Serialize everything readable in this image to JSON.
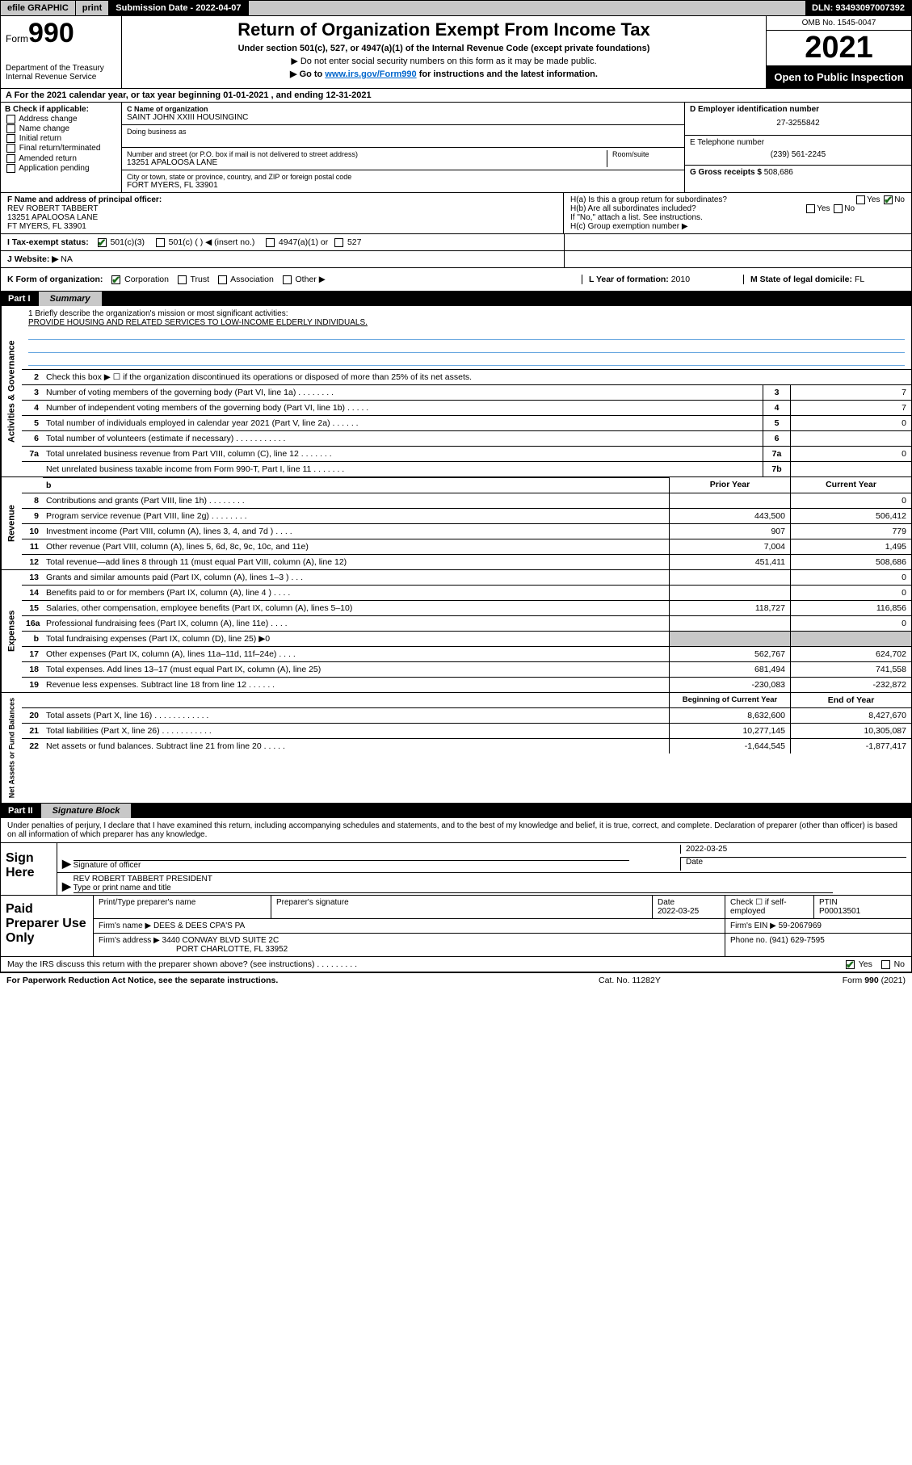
{
  "topbar": {
    "efile": "efile GRAPHIC",
    "print": "print",
    "subdate_label": "Submission Date - 2022-04-07",
    "dln": "DLN: 93493097007392"
  },
  "header": {
    "form_prefix": "Form",
    "form_num": "990",
    "dept": "Department of the Treasury",
    "irs": "Internal Revenue Service",
    "title": "Return of Organization Exempt From Income Tax",
    "sub": "Under section 501(c), 527, or 4947(a)(1) of the Internal Revenue Code (except private foundations)",
    "note1": "▶ Do not enter social security numbers on this form as it may be made public.",
    "note2_pre": "▶ Go to ",
    "note2_link": "www.irs.gov/Form990",
    "note2_post": " for instructions and the latest information.",
    "omb": "OMB No. 1545-0047",
    "year": "2021",
    "open": "Open to Public Inspection"
  },
  "row_a": "A For the 2021 calendar year, or tax year beginning 01-01-2021   , and ending 12-31-2021",
  "sec_b": {
    "label": "B Check if applicable:",
    "items": [
      "Address change",
      "Name change",
      "Initial return",
      "Final return/terminated",
      "Amended return",
      "Application pending"
    ]
  },
  "sec_c": {
    "name_label": "C Name of organization",
    "name": "SAINT JOHN XXIII HOUSINGINC",
    "dba_label": "Doing business as",
    "addr_label": "Number and street (or P.O. box if mail is not delivered to street address)",
    "room_label": "Room/suite",
    "addr": "13251 APALOOSA LANE",
    "city_label": "City or town, state or province, country, and ZIP or foreign postal code",
    "city": "FORT MYERS, FL  33901"
  },
  "sec_d": {
    "ein_label": "D Employer identification number",
    "ein": "27-3255842",
    "tel_label": "E Telephone number",
    "tel": "(239) 561-2245",
    "gross_label": "G Gross receipts $",
    "gross": "508,686"
  },
  "sec_f": {
    "label": "F  Name and address of principal officer:",
    "name": "REV ROBERT TABBERT",
    "addr1": "13251 APALOOSA LANE",
    "addr2": "FT MYERS, FL  33901"
  },
  "sec_h": {
    "ha": "H(a)  Is this a group return for subordinates?",
    "hb": "H(b)  Are all subordinates included?",
    "hb_note": "If \"No,\" attach a list. See instructions.",
    "hc": "H(c)  Group exemption number ▶",
    "yes": "Yes",
    "no": "No"
  },
  "row_i": {
    "label": "I   Tax-exempt status:",
    "opts": [
      "501(c)(3)",
      "501(c) (   ) ◀ (insert no.)",
      "4947(a)(1) or",
      "527"
    ]
  },
  "row_j": {
    "label": "J   Website: ▶",
    "val": "NA"
  },
  "row_k": {
    "label": "K Form of organization:",
    "opts": [
      "Corporation",
      "Trust",
      "Association",
      "Other ▶"
    ],
    "year_label": "L Year of formation:",
    "year": "2010",
    "state_label": "M State of legal domicile:",
    "state": "FL"
  },
  "part1": {
    "num": "Part I",
    "title": "Summary"
  },
  "mission": {
    "q": "1  Briefly describe the organization's mission or most significant activities:",
    "txt": "PROVIDE HOUSING AND RELATED SERVICES TO LOW-INCOME ELDERLY INDIVIDUALS."
  },
  "gov_rows": [
    {
      "n": "2",
      "t": "Check this box ▶ ☐  if the organization discontinued its operations or disposed of more than 25% of its net assets."
    },
    {
      "n": "3",
      "t": "Number of voting members of the governing body (Part VI, line 1a)   .     .     .     .     .     .     .     .",
      "b": "3",
      "v": "7"
    },
    {
      "n": "4",
      "t": "Number of independent voting members of the governing body (Part VI, line 1b)   .     .     .     .     .",
      "b": "4",
      "v": "7"
    },
    {
      "n": "5",
      "t": "Total number of individuals employed in calendar year 2021 (Part V, line 2a)   .     .     .     .     .     .",
      "b": "5",
      "v": "0"
    },
    {
      "n": "6",
      "t": "Total number of volunteers (estimate if necessary)   .     .     .     .     .     .     .     .     .     .     .",
      "b": "6",
      "v": ""
    },
    {
      "n": "7a",
      "t": "Total unrelated business revenue from Part VIII, column (C), line 12   .     .     .     .     .     .     .",
      "b": "7a",
      "v": "0"
    },
    {
      "n": "",
      "t": "Net unrelated business taxable income from Form 990-T, Part I, line 11   .     .     .     .     .     .     .",
      "b": "7b",
      "v": ""
    }
  ],
  "pycol": "Prior Year",
  "cycol": "Current Year",
  "rev_rows": [
    {
      "n": "8",
      "t": "Contributions and grants (Part VIII, line 1h)    .     .     .     .     .     .     .     .",
      "py": "",
      "cy": "0"
    },
    {
      "n": "9",
      "t": "Program service revenue (Part VIII, line 2g)   .     .     .     .     .     .     .     .",
      "py": "443,500",
      "cy": "506,412"
    },
    {
      "n": "10",
      "t": "Investment income (Part VIII, column (A), lines 3, 4, and 7d )   .     .     .     .",
      "py": "907",
      "cy": "779"
    },
    {
      "n": "11",
      "t": "Other revenue (Part VIII, column (A), lines 5, 6d, 8c, 9c, 10c, and 11e)",
      "py": "7,004",
      "cy": "1,495"
    },
    {
      "n": "12",
      "t": "Total revenue—add lines 8 through 11 (must equal Part VIII, column (A), line 12)",
      "py": "451,411",
      "cy": "508,686"
    }
  ],
  "exp_rows": [
    {
      "n": "13",
      "t": "Grants and similar amounts paid (Part IX, column (A), lines 1–3 )   .     .     .",
      "py": "",
      "cy": "0"
    },
    {
      "n": "14",
      "t": "Benefits paid to or for members (Part IX, column (A), line 4 )   .     .     .     .",
      "py": "",
      "cy": "0"
    },
    {
      "n": "15",
      "t": "Salaries, other compensation, employee benefits (Part IX, column (A), lines 5–10)",
      "py": "118,727",
      "cy": "116,856"
    },
    {
      "n": "16a",
      "t": "Professional fundraising fees (Part IX, column (A), line 11e)   .     .     .     .",
      "py": "",
      "cy": "0"
    },
    {
      "n": "b",
      "t": "Total fundraising expenses (Part IX, column (D), line 25) ▶0",
      "py": "shade",
      "cy": "shade"
    },
    {
      "n": "17",
      "t": "Other expenses (Part IX, column (A), lines 11a–11d, 11f–24e)   .     .     .     .",
      "py": "562,767",
      "cy": "624,702"
    },
    {
      "n": "18",
      "t": "Total expenses. Add lines 13–17 (must equal Part IX, column (A), line 25)",
      "py": "681,494",
      "cy": "741,558"
    },
    {
      "n": "19",
      "t": "Revenue less expenses. Subtract line 18 from line 12   .     .     .     .     .     .",
      "py": "-230,083",
      "cy": "-232,872"
    }
  ],
  "bocol": "Beginning of Current Year",
  "eocol": "End of Year",
  "na_rows": [
    {
      "n": "20",
      "t": "Total assets (Part X, line 16)   .     .     .     .     .     .     .     .     .     .     .     .",
      "py": "8,632,600",
      "cy": "8,427,670"
    },
    {
      "n": "21",
      "t": "Total liabilities (Part X, line 26)   .     .     .     .     .     .     .     .     .     .     .",
      "py": "10,277,145",
      "cy": "10,305,087"
    },
    {
      "n": "22",
      "t": "Net assets or fund balances. Subtract line 21 from line 20   .     .     .     .     .",
      "py": "-1,644,545",
      "cy": "-1,877,417"
    }
  ],
  "part2": {
    "num": "Part II",
    "title": "Signature Block"
  },
  "sig_decl": "Under penalties of perjury, I declare that I have examined this return, including accompanying schedules and statements, and to the best of my knowledge and belief, it is true, correct, and complete. Declaration of preparer (other than officer) is based on all information of which preparer has any knowledge.",
  "sign": {
    "label": "Sign Here",
    "date": "2022-03-25",
    "sig_label": "Signature of officer",
    "date_label": "Date",
    "name": "REV ROBERT TABBERT  PRESIDENT",
    "name_label": "Type or print name and title"
  },
  "paid": {
    "label": "Paid Preparer Use Only",
    "h1": "Print/Type preparer's name",
    "h2": "Preparer's signature",
    "h3": "Date",
    "date": "2022-03-25",
    "h4": "Check ☐ if self-employed",
    "h5_label": "PTIN",
    "h5": "P00013501",
    "firm_label": "Firm's name    ▶",
    "firm": "DEES & DEES CPA'S PA",
    "ein_label": "Firm's EIN ▶",
    "ein": "59-2067969",
    "addr_label": "Firm's address ▶",
    "addr1": "3440 CONWAY BLVD SUITE 2C",
    "addr2": "PORT CHARLOTTE, FL  33952",
    "phone_label": "Phone no.",
    "phone": "(941) 629-7595"
  },
  "bottom": {
    "q": "May the IRS discuss this return with the preparer shown above? (see instructions)   .     .     .     .     .     .     .     .     .",
    "yes": "Yes",
    "no": "No"
  },
  "footer": {
    "l": "For Paperwork Reduction Act Notice, see the separate instructions.",
    "c": "Cat. No. 11282Y",
    "r_pre": "Form ",
    "r_b": "990",
    "r_post": " (2021)"
  },
  "vtabs": {
    "gov": "Activities & Governance",
    "rev": "Revenue",
    "exp": "Expenses",
    "na": "Net Assets or Fund Balances"
  }
}
